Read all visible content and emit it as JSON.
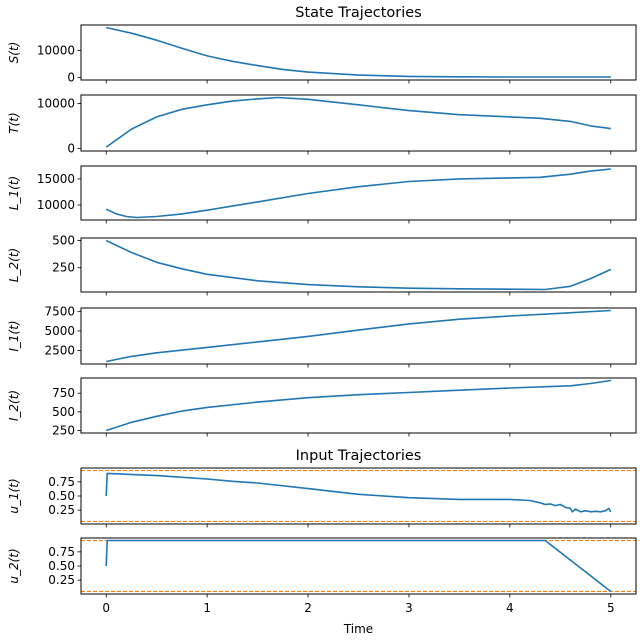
{
  "chart_data": [
    {
      "type": "line",
      "title": "State Trajectories",
      "ylabel": "S(t)",
      "xlim": [
        -0.25,
        5.25
      ],
      "ylim": [
        -925,
        19425
      ],
      "yticks": [
        0,
        10000
      ],
      "ytick_labels": [
        "0",
        "10000"
      ],
      "grid": false,
      "series": [
        {
          "color": "#1f77b4",
          "x": [
            0,
            0.25,
            0.5,
            0.75,
            1,
            1.25,
            1.5,
            1.75,
            2,
            2.5,
            3,
            3.5,
            4,
            4.5,
            5
          ],
          "y": [
            18500,
            16400,
            13800,
            10800,
            8000,
            6000,
            4400,
            3000,
            2000,
            900,
            400,
            250,
            200,
            200,
            200
          ]
        }
      ]
    },
    {
      "type": "line",
      "ylabel": "T(t)",
      "xlim": [
        -0.25,
        5.25
      ],
      "ylim": [
        -565,
        11865
      ],
      "yticks": [
        0,
        10000
      ],
      "ytick_labels": [
        "0",
        "10000"
      ],
      "grid": false,
      "series": [
        {
          "color": "#1f77b4",
          "x": [
            0,
            0.25,
            0.5,
            0.75,
            1,
            1.25,
            1.5,
            1.7,
            2,
            2.5,
            3,
            3.5,
            4,
            4.3,
            4.6,
            4.8,
            5
          ],
          "y": [
            300,
            4300,
            7000,
            8700,
            9700,
            10500,
            11000,
            11300,
            10900,
            9700,
            8400,
            7500,
            7000,
            6700,
            6000,
            5000,
            4400
          ]
        }
      ]
    },
    {
      "type": "line",
      "ylabel": "L_1(t)",
      "xlim": [
        -0.25,
        5.25
      ],
      "ylim": [
        7130,
        17470
      ],
      "yticks": [
        10000,
        15000
      ],
      "ytick_labels": [
        "10000",
        "15000"
      ],
      "grid": false,
      "series": [
        {
          "color": "#1f77b4",
          "x": [
            0,
            0.1,
            0.2,
            0.3,
            0.5,
            0.75,
            1,
            1.5,
            2,
            2.5,
            3,
            3.5,
            4,
            4.3,
            4.6,
            4.8,
            5
          ],
          "y": [
            9200,
            8300,
            7800,
            7600,
            7800,
            8300,
            9000,
            10600,
            12200,
            13500,
            14500,
            15000,
            15200,
            15300,
            15900,
            16500,
            16900
          ]
        }
      ]
    },
    {
      "type": "line",
      "ylabel": "L_2(t)",
      "xlim": [
        -0.25,
        5.25
      ],
      "ylim": [
        27.5,
        522.5
      ],
      "yticks": [
        250,
        500
      ],
      "ytick_labels": [
        "250",
        "500"
      ],
      "grid": false,
      "series": [
        {
          "color": "#1f77b4",
          "x": [
            0,
            0.25,
            0.5,
            0.75,
            1,
            1.5,
            2,
            2.5,
            3,
            3.5,
            4,
            4.35,
            4.6,
            4.8,
            5
          ],
          "y": [
            500,
            390,
            300,
            240,
            190,
            130,
            95,
            75,
            62,
            57,
            53,
            50,
            80,
            150,
            235
          ]
        }
      ]
    },
    {
      "type": "line",
      "ylabel": "I_1(t)",
      "xlim": [
        -0.25,
        5.25
      ],
      "ylim": [
        775,
        7925
      ],
      "yticks": [
        2500,
        5000,
        7500
      ],
      "ytick_labels": [
        "2500",
        "5000",
        "7500"
      ],
      "grid": false,
      "series": [
        {
          "color": "#1f77b4",
          "x": [
            0,
            0.25,
            0.5,
            1,
            1.5,
            2,
            2.5,
            3,
            3.5,
            4,
            4.5,
            5
          ],
          "y": [
            1100,
            1750,
            2200,
            2900,
            3600,
            4300,
            5100,
            5900,
            6500,
            6900,
            7250,
            7600
          ]
        }
      ]
    },
    {
      "type": "line",
      "ylabel": "I_2(t)",
      "xlim": [
        -0.25,
        5.25
      ],
      "ylim": [
        216,
        954
      ],
      "yticks": [
        250,
        500,
        750
      ],
      "ytick_labels": [
        "250",
        "500",
        "750"
      ],
      "grid": false,
      "series": [
        {
          "color": "#1f77b4",
          "x": [
            0,
            0.25,
            0.5,
            0.75,
            1,
            1.5,
            2,
            2.5,
            3,
            3.5,
            4,
            4.6,
            4.8,
            5
          ],
          "y": [
            250,
            360,
            440,
            510,
            560,
            630,
            690,
            730,
            760,
            790,
            820,
            850,
            880,
            920
          ]
        }
      ]
    },
    {
      "type": "line",
      "title": "Input Trajectories",
      "ylabel": "u_1(t)",
      "xlim": [
        -0.25,
        5.25
      ],
      "ylim": [
        0.005,
        0.995
      ],
      "yticks": [
        0.25,
        0.5,
        0.75
      ],
      "ytick_labels": [
        "0.25",
        "0.50",
        "0.75"
      ],
      "grid": false,
      "hlines": [
        {
          "y": 0.95,
          "color": "#ff7f0e",
          "style": "dashed"
        },
        {
          "y": 0.05,
          "color": "#ff7f0e",
          "style": "dashed"
        }
      ],
      "series": [
        {
          "color": "#1f77b4",
          "x": [
            0,
            0.01,
            0.5,
            1,
            1.25,
            1.5,
            2,
            2.5,
            3,
            3.5,
            4,
            4.2,
            4.3,
            4.35,
            4.4,
            4.45,
            4.5,
            4.55,
            4.6,
            4.62,
            4.65,
            4.7,
            4.75,
            4.8,
            4.85,
            4.9,
            4.95,
            4.98,
            5
          ],
          "y": [
            0.5,
            0.9,
            0.86,
            0.8,
            0.76,
            0.73,
            0.63,
            0.53,
            0.47,
            0.44,
            0.44,
            0.42,
            0.38,
            0.35,
            0.36,
            0.33,
            0.35,
            0.3,
            0.28,
            0.22,
            0.27,
            0.22,
            0.24,
            0.22,
            0.23,
            0.22,
            0.24,
            0.28,
            0.22
          ]
        }
      ]
    },
    {
      "type": "line",
      "ylabel": "u_2(t)",
      "xlabel": "Time",
      "xlim": [
        -0.25,
        5.25
      ],
      "ylim": [
        0.005,
        0.995
      ],
      "yticks": [
        0.25,
        0.5,
        0.75
      ],
      "ytick_labels": [
        "0.25",
        "0.50",
        "0.75"
      ],
      "grid": false,
      "xticks": [
        0,
        1,
        2,
        3,
        4,
        5
      ],
      "xtick_labels": [
        "0",
        "1",
        "2",
        "3",
        "4",
        "5"
      ],
      "hlines": [
        {
          "y": 0.95,
          "color": "#ff7f0e",
          "style": "dashed"
        },
        {
          "y": 0.05,
          "color": "#ff7f0e",
          "style": "dashed"
        }
      ],
      "series": [
        {
          "color": "#1f77b4",
          "x": [
            0,
            0.01,
            4.35,
            5
          ],
          "y": [
            0.5,
            0.95,
            0.95,
            0.05
          ]
        }
      ]
    }
  ]
}
